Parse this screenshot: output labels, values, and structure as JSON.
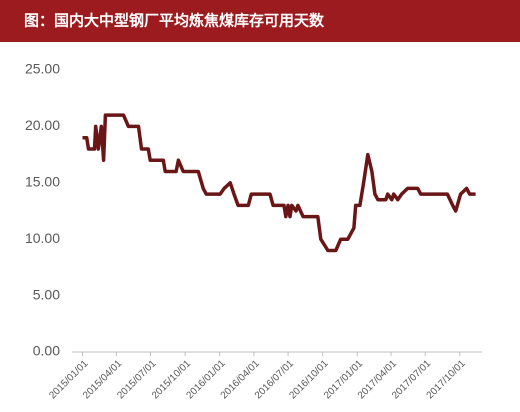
{
  "chart_data": {
    "type": "line",
    "title": "图：国内大中型钢厂平均炼焦煤库存可用天数",
    "x": [
      "2015/01/01",
      "2015/01/12",
      "2015/01/17",
      "2015/02/02",
      "2015/02/05",
      "2015/02/12",
      "2015/02/20",
      "2015/02/26",
      "2015/03/03",
      "2015/04/20",
      "2015/05/03",
      "2015/05/30",
      "2015/06/07",
      "2015/06/25",
      "2015/06/30",
      "2015/08/04",
      "2015/08/09",
      "2015/09/07",
      "2015/09/13",
      "2015/09/26",
      "2015/11/05",
      "2015/11/18",
      "2015/11/26",
      "2016/01/02",
      "2016/01/13",
      "2016/01/29",
      "2016/02/08",
      "2016/02/19",
      "2016/03/17",
      "2016/03/25",
      "2016/05/14",
      "2016/05/22",
      "2016/06/20",
      "2016/06/25",
      "2016/07/01",
      "2016/07/06",
      "2016/07/11",
      "2016/07/22",
      "2016/07/27",
      "2016/08/10",
      "2016/09/18",
      "2016/09/26",
      "2016/10/15",
      "2016/11/05",
      "2016/11/18",
      "2016/12/07",
      "2016/12/23",
      "2016/12/28",
      "2017/01/08",
      "2017/01/18",
      "2017/01/29",
      "2017/02/09",
      "2017/02/17",
      "2017/02/25",
      "2017/03/18",
      "2017/03/23",
      "2017/04/03",
      "2017/04/08",
      "2017/04/19",
      "2017/04/29",
      "2017/05/15",
      "2017/06/11",
      "2017/06/19",
      "2017/08/29",
      "2017/09/12",
      "2017/09/20",
      "2017/10/03",
      "2017/10/19",
      "2017/10/27",
      "2017/11/12"
    ],
    "series": [
      {
        "color": "#6b1616",
        "values": [
          19,
          19,
          18,
          18,
          20,
          18,
          20,
          17,
          21,
          21,
          20,
          20,
          18,
          18,
          17,
          17,
          16,
          16,
          17,
          16,
          16,
          14.5,
          14,
          14,
          14.5,
          15,
          14,
          13,
          13,
          14,
          14,
          13,
          13,
          12,
          13,
          12,
          13,
          12.5,
          13,
          12,
          12,
          10,
          9,
          9,
          10,
          10,
          11,
          13,
          13,
          15,
          17.5,
          16,
          14,
          13.5,
          13.5,
          14,
          13.5,
          14,
          13.5,
          14,
          14.5,
          14.5,
          14,
          14,
          13,
          12.5,
          14,
          14.5,
          14,
          14
        ]
      }
    ],
    "xlim": [
      "2014/12/04",
      "2017/11/29"
    ],
    "xticks": [
      "2015/01/01",
      "2015/04/01",
      "2015/07/01",
      "2015/10/01",
      "2016/01/01",
      "2016/04/01",
      "2016/07/01",
      "2016/10/01",
      "2017/01/01",
      "2017/04/01",
      "2017/07/01",
      "2017/10/01"
    ],
    "ylim": [
      0,
      25
    ],
    "yticks": [
      {
        "value": 0,
        "label": "0.00"
      },
      {
        "value": 5,
        "label": "5.00"
      },
      {
        "value": 10,
        "label": "10.00"
      },
      {
        "value": 15,
        "label": "15.00"
      },
      {
        "value": 20,
        "label": "20.00"
      },
      {
        "value": 25,
        "label": "25.00"
      }
    ]
  }
}
